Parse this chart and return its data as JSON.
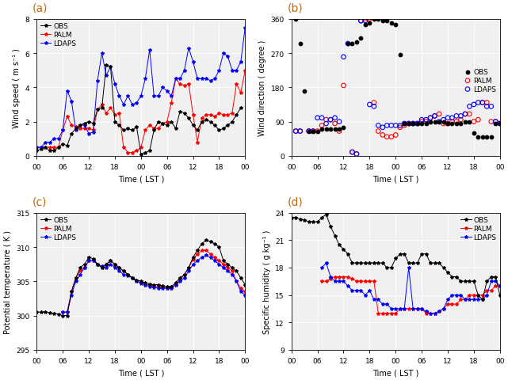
{
  "panel_labels": [
    "(a)",
    "(b)",
    "(c)",
    "(d)"
  ],
  "panel_label_color": "#cc6600",
  "time_ticks": [
    0,
    6,
    12,
    18,
    24,
    30,
    36,
    42,
    48
  ],
  "time_tick_labels": [
    "00",
    "06",
    "12",
    "18",
    "00",
    "06",
    "12",
    "18",
    "00"
  ],
  "xlabel": "Time ( LST )",
  "obs_color": "black",
  "palm_color": "red",
  "ldaps_color": "blue",
  "a_ylabel": "Wind speed ( m s⁻¹ )",
  "a_ylim": [
    0,
    8
  ],
  "a_yticks": [
    0,
    2,
    4,
    6,
    8
  ],
  "obs_ws_t": [
    0,
    1,
    2,
    3,
    4,
    5,
    6,
    7,
    8,
    9,
    10,
    11,
    12,
    13,
    14,
    15,
    16,
    17,
    18,
    19,
    20,
    21,
    22,
    23,
    24,
    25,
    26,
    27,
    28,
    29,
    30,
    31,
    32,
    33,
    34,
    35,
    36,
    37,
    38,
    39,
    40,
    41,
    42,
    43,
    44,
    45,
    46,
    47
  ],
  "obs_ws": [
    0.3,
    0.4,
    0.5,
    0.3,
    0.3,
    0.5,
    0.7,
    0.6,
    1.3,
    1.6,
    1.8,
    1.9,
    2.0,
    1.9,
    2.7,
    2.8,
    5.3,
    5.2,
    2.0,
    1.8,
    1.5,
    1.6,
    1.5,
    1.7,
    0.1,
    0.2,
    0.3,
    1.5,
    2.0,
    1.9,
    1.8,
    2.0,
    1.6,
    2.6,
    2.5,
    2.2,
    1.8,
    1.5,
    2.0,
    2.1,
    2.0,
    1.8,
    1.5,
    1.6,
    1.8,
    2.0,
    2.4,
    2.8
  ],
  "palm_ws_t": [
    0,
    1,
    2,
    3,
    4,
    5,
    6,
    7,
    8,
    9,
    10,
    11,
    12,
    13,
    14,
    15,
    16,
    17,
    18,
    19,
    20,
    21,
    22,
    23,
    24,
    25,
    26,
    27,
    28,
    29,
    30,
    31,
    32,
    33,
    34,
    35,
    36,
    37,
    38,
    39,
    40,
    41,
    42,
    43,
    44,
    45,
    46,
    47,
    48
  ],
  "palm_ws": [
    0.5,
    0.5,
    0.5,
    0.5,
    0.5,
    0.5,
    1.5,
    2.3,
    1.8,
    1.7,
    1.6,
    1.6,
    1.6,
    1.5,
    2.7,
    3.0,
    2.5,
    2.8,
    2.4,
    2.5,
    0.5,
    0.2,
    0.2,
    0.3,
    0.5,
    1.5,
    1.8,
    1.6,
    1.6,
    1.9,
    2.0,
    3.1,
    4.5,
    4.2,
    4.1,
    4.2,
    2.4,
    0.8,
    2.2,
    2.4,
    2.4,
    2.3,
    2.5,
    2.4,
    2.4,
    2.5,
    4.2,
    3.7,
    5.0
  ],
  "ldaps_ws_t": [
    0,
    1,
    2,
    3,
    4,
    5,
    6,
    7,
    8,
    9,
    10,
    11,
    12,
    13,
    14,
    15,
    16,
    17,
    18,
    19,
    20,
    21,
    22,
    23,
    24,
    25,
    26,
    27,
    28,
    29,
    30,
    31,
    32,
    33,
    34,
    35,
    36,
    37,
    38,
    39,
    40,
    41,
    42,
    43,
    44,
    45,
    46,
    47,
    48
  ],
  "ldaps_ws": [
    0.5,
    0.5,
    0.8,
    0.8,
    1.0,
    1.0,
    1.5,
    3.8,
    3.2,
    1.5,
    1.8,
    1.8,
    1.3,
    1.4,
    4.4,
    6.0,
    4.7,
    5.2,
    4.2,
    3.5,
    3.0,
    3.5,
    3.0,
    3.1,
    3.5,
    4.5,
    6.2,
    3.5,
    3.5,
    4.0,
    3.8,
    3.5,
    4.5,
    4.5,
    5.0,
    6.3,
    5.5,
    4.5,
    4.5,
    4.5,
    4.4,
    4.5,
    5.0,
    6.0,
    5.8,
    5.0,
    5.0,
    5.5,
    7.5
  ],
  "b_ylabel": "Wind direction ( degree )",
  "b_ylim": [
    0,
    360
  ],
  "b_yticks": [
    0,
    90,
    180,
    270,
    360
  ],
  "obs_wd_t": [
    1,
    2,
    3,
    4,
    5,
    6,
    7,
    8,
    9,
    10,
    11,
    12,
    13,
    14,
    15,
    16,
    17,
    18,
    19,
    20,
    21,
    22,
    23,
    24,
    25,
    26,
    27,
    28,
    29,
    30,
    31,
    32,
    33,
    34,
    35,
    36,
    37,
    38,
    39,
    40,
    41,
    42,
    43,
    44,
    45,
    46,
    47,
    48
  ],
  "obs_wd": [
    360,
    295,
    170,
    65,
    65,
    65,
    70,
    70,
    70,
    70,
    70,
    75,
    295,
    295,
    300,
    310,
    345,
    350,
    360,
    360,
    355,
    355,
    350,
    345,
    265,
    85,
    85,
    85,
    85,
    85,
    85,
    90,
    90,
    90,
    90,
    85,
    85,
    85,
    85,
    90,
    90,
    60,
    50,
    50,
    50,
    50,
    85,
    85
  ],
  "palm_wd_t": [
    1,
    2,
    4,
    5,
    6,
    7,
    8,
    9,
    10,
    11,
    12,
    14,
    15,
    16,
    17,
    18,
    19,
    20,
    21,
    22,
    23,
    24,
    25,
    26,
    27,
    28,
    29,
    30,
    31,
    32,
    33,
    34,
    35,
    36,
    37,
    38,
    39,
    40,
    41,
    42,
    43,
    44,
    45,
    46,
    47,
    48
  ],
  "palm_wd": [
    65,
    65,
    65,
    65,
    65,
    80,
    95,
    95,
    85,
    65,
    185,
    10,
    5,
    355,
    360,
    360,
    140,
    65,
    55,
    50,
    50,
    55,
    75,
    80,
    85,
    85,
    85,
    90,
    90,
    100,
    105,
    110,
    85,
    85,
    90,
    90,
    95,
    110,
    110,
    90,
    95,
    140,
    140,
    90,
    90,
    85
  ],
  "ldaps_wd_t": [
    1,
    2,
    4,
    5,
    6,
    7,
    8,
    9,
    10,
    11,
    12,
    13,
    14,
    15,
    16,
    17,
    18,
    19,
    20,
    21,
    22,
    23,
    24,
    25,
    26,
    27,
    28,
    29,
    30,
    31,
    32,
    33,
    34,
    35,
    36,
    37,
    38,
    39,
    40,
    41,
    42,
    43,
    44,
    45,
    46,
    47,
    48
  ],
  "ldaps_wd": [
    65,
    65,
    65,
    65,
    100,
    100,
    85,
    95,
    100,
    90,
    260,
    295,
    10,
    5,
    355,
    355,
    135,
    130,
    80,
    75,
    80,
    80,
    80,
    80,
    85,
    85,
    85,
    85,
    95,
    95,
    100,
    105,
    90,
    95,
    100,
    100,
    105,
    105,
    110,
    130,
    135,
    140,
    140,
    130,
    130,
    90,
    85
  ],
  "c_ylabel": "Potential temperature ( K )",
  "c_ylim": [
    295,
    315
  ],
  "c_yticks": [
    295,
    300,
    305,
    310,
    315
  ],
  "obs_pt_t": [
    0,
    1,
    2,
    3,
    4,
    5,
    6,
    7,
    8,
    9,
    10,
    11,
    12,
    13,
    14,
    15,
    16,
    17,
    18,
    19,
    20,
    21,
    22,
    23,
    24,
    25,
    26,
    27,
    28,
    29,
    30,
    31,
    32,
    33,
    34,
    35,
    36,
    37,
    38,
    39,
    40,
    41,
    42,
    43,
    44,
    45,
    46,
    47,
    48
  ],
  "obs_pt": [
    300.5,
    300.5,
    300.5,
    300.4,
    300.3,
    300.2,
    300.0,
    300.0,
    303.5,
    305.5,
    307.0,
    307.5,
    308.5,
    308.3,
    307.5,
    307.0,
    307.5,
    308.0,
    307.5,
    307.0,
    306.5,
    306.0,
    305.5,
    305.2,
    305.0,
    304.8,
    304.6,
    304.5,
    304.5,
    304.3,
    304.2,
    304.2,
    304.8,
    305.5,
    306.0,
    307.0,
    308.5,
    309.5,
    310.5,
    311.0,
    310.8,
    310.5,
    310.0,
    308.0,
    307.5,
    307.0,
    306.5,
    305.5,
    304.5
  ],
  "palm_pt_t": [
    6,
    7,
    8,
    9,
    10,
    11,
    12,
    13,
    14,
    15,
    16,
    17,
    18,
    19,
    20,
    21,
    22,
    23,
    24,
    25,
    26,
    27,
    28,
    29,
    30,
    31,
    32,
    33,
    34,
    35,
    36,
    37,
    38,
    39,
    40,
    41,
    42,
    43,
    44,
    45,
    46,
    47,
    48
  ],
  "palm_pt": [
    300.5,
    300.5,
    303.5,
    305.5,
    306.5,
    307.0,
    308.0,
    308.0,
    307.5,
    307.0,
    307.5,
    308.0,
    307.5,
    307.0,
    306.5,
    306.0,
    305.5,
    305.0,
    304.8,
    304.5,
    304.5,
    304.3,
    304.2,
    304.1,
    304.0,
    304.0,
    304.5,
    305.2,
    306.0,
    307.0,
    308.2,
    309.0,
    309.5,
    309.5,
    309.0,
    308.5,
    308.0,
    307.5,
    307.0,
    306.5,
    305.0,
    304.0,
    303.5
  ],
  "ldaps_pt_t": [
    6,
    7,
    8,
    9,
    10,
    11,
    12,
    13,
    14,
    15,
    16,
    17,
    18,
    19,
    20,
    21,
    22,
    23,
    24,
    25,
    26,
    27,
    28,
    29,
    30,
    31,
    32,
    33,
    34,
    35,
    36,
    37,
    38,
    39,
    40,
    41,
    42,
    43,
    44,
    45,
    46,
    47,
    48
  ],
  "ldaps_pt": [
    300.5,
    300.5,
    303.0,
    305.0,
    306.0,
    307.0,
    308.0,
    308.0,
    307.5,
    307.2,
    307.0,
    307.5,
    307.0,
    306.5,
    306.0,
    305.8,
    305.5,
    305.0,
    304.7,
    304.5,
    304.2,
    304.1,
    304.0,
    304.0,
    304.0,
    304.0,
    304.5,
    305.0,
    305.5,
    306.5,
    307.5,
    308.0,
    308.5,
    308.8,
    308.5,
    308.0,
    307.5,
    307.0,
    306.5,
    306.0,
    305.0,
    303.5,
    303.0
  ],
  "d_ylabel": "Specific humidity ( g kg⁻¹ )",
  "d_ylim": [
    9,
    24
  ],
  "d_yticks": [
    9,
    12,
    15,
    18,
    21,
    24
  ],
  "obs_sh_t": [
    0,
    1,
    2,
    3,
    4,
    5,
    6,
    7,
    8,
    9,
    10,
    11,
    12,
    13,
    14,
    15,
    16,
    17,
    18,
    19,
    20,
    21,
    22,
    23,
    24,
    25,
    26,
    27,
    28,
    29,
    30,
    31,
    32,
    33,
    34,
    35,
    36,
    37,
    38,
    39,
    40,
    41,
    42,
    43,
    44,
    45,
    46,
    47,
    48
  ],
  "obs_sh": [
    23.5,
    23.5,
    23.3,
    23.2,
    23.0,
    23.0,
    23.0,
    23.5,
    23.8,
    22.5,
    21.5,
    20.5,
    20.0,
    19.5,
    18.5,
    18.5,
    18.5,
    18.5,
    18.5,
    18.5,
    18.5,
    18.5,
    18.0,
    18.0,
    19.0,
    19.5,
    19.5,
    18.5,
    18.5,
    18.5,
    19.5,
    19.5,
    18.5,
    18.5,
    18.5,
    18.0,
    17.5,
    17.0,
    17.0,
    16.5,
    16.5,
    16.5,
    16.5,
    15.0,
    14.5,
    16.5,
    17.0,
    17.0,
    15.0
  ],
  "palm_sh_t": [
    7,
    8,
    9,
    10,
    11,
    12,
    13,
    14,
    15,
    16,
    17,
    18,
    19,
    20,
    21,
    22,
    23,
    24,
    25,
    26,
    27,
    28,
    29,
    30,
    31,
    32,
    33,
    34,
    35,
    36,
    37,
    38,
    39,
    40,
    41,
    42,
    43,
    44,
    45,
    46,
    47,
    48
  ],
  "palm_sh": [
    16.5,
    16.5,
    16.8,
    17.0,
    17.0,
    17.0,
    17.0,
    16.8,
    16.5,
    16.5,
    16.5,
    16.5,
    16.5,
    13.0,
    13.0,
    13.0,
    13.0,
    13.0,
    13.5,
    13.5,
    13.5,
    13.5,
    13.5,
    13.5,
    13.0,
    13.0,
    13.0,
    13.2,
    13.5,
    14.0,
    14.0,
    14.0,
    14.5,
    14.5,
    15.0,
    15.0,
    15.0,
    15.0,
    15.5,
    15.5,
    16.0,
    16.0
  ],
  "ldaps_sh_t": [
    7,
    8,
    9,
    10,
    11,
    12,
    13,
    14,
    15,
    16,
    17,
    18,
    19,
    20,
    21,
    22,
    23,
    24,
    25,
    26,
    27,
    28,
    29,
    30,
    31,
    32,
    33,
    34,
    35,
    36,
    37,
    38,
    39,
    40,
    41,
    42,
    43,
    44,
    45,
    46,
    47,
    48
  ],
  "ldaps_sh": [
    18.0,
    18.5,
    17.0,
    16.5,
    16.5,
    16.5,
    16.0,
    15.5,
    15.5,
    15.5,
    15.0,
    15.5,
    14.5,
    14.5,
    14.0,
    14.0,
    13.5,
    13.5,
    13.5,
    13.5,
    18.0,
    13.5,
    13.5,
    13.5,
    13.2,
    13.0,
    13.0,
    13.2,
    13.5,
    14.5,
    15.0,
    15.0,
    15.0,
    14.5,
    14.5,
    14.5,
    14.5,
    14.5,
    15.0,
    16.5,
    16.5,
    16.0
  ],
  "legend_fontsize": 6.5,
  "tick_fontsize": 6.5,
  "label_fontsize": 7,
  "panel_label_fontsize": 10,
  "linewidth": 0.7,
  "markersize": 3
}
